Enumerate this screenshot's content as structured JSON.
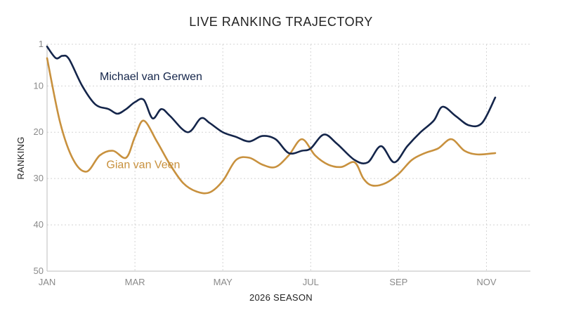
{
  "chart_data": {
    "type": "line",
    "title": "LIVE RANKING TRAJECTORY",
    "xlabel": "2026 SEASON",
    "ylabel": "RANKING",
    "y_inverted": true,
    "ylim": [
      1,
      50
    ],
    "yticks": [
      1,
      10,
      20,
      30,
      40,
      50
    ],
    "xlim": [
      0,
      11
    ],
    "xticks": [
      {
        "x": 0,
        "label": "JAN"
      },
      {
        "x": 2,
        "label": "MAR"
      },
      {
        "x": 4,
        "label": "MAY"
      },
      {
        "x": 6,
        "label": "JUL"
      },
      {
        "x": 8,
        "label": "SEP"
      },
      {
        "x": 10,
        "label": "NOV"
      }
    ],
    "grid": true,
    "series": [
      {
        "name": "Michael van Gerwen",
        "color": "#14254a",
        "label_at": {
          "x": 1.2,
          "y": 8
        },
        "points": [
          [
            0,
            1.5
          ],
          [
            0.2,
            4
          ],
          [
            0.35,
            3.5
          ],
          [
            0.5,
            4.2
          ],
          [
            0.8,
            10
          ],
          [
            1.1,
            14
          ],
          [
            1.4,
            15
          ],
          [
            1.6,
            16
          ],
          [
            1.8,
            15
          ],
          [
            2.0,
            13.5
          ],
          [
            2.2,
            13
          ],
          [
            2.4,
            17
          ],
          [
            2.6,
            15
          ],
          [
            2.8,
            16.5
          ],
          [
            3.2,
            20
          ],
          [
            3.5,
            17
          ],
          [
            3.7,
            18
          ],
          [
            4.0,
            20
          ],
          [
            4.3,
            21
          ],
          [
            4.6,
            22
          ],
          [
            4.9,
            20.8
          ],
          [
            5.2,
            21.5
          ],
          [
            5.5,
            24.5
          ],
          [
            5.8,
            24
          ],
          [
            6.0,
            23.5
          ],
          [
            6.3,
            20.5
          ],
          [
            6.6,
            22.5
          ],
          [
            7.0,
            26
          ],
          [
            7.3,
            26.5
          ],
          [
            7.6,
            23
          ],
          [
            7.9,
            26.5
          ],
          [
            8.2,
            23
          ],
          [
            8.5,
            20
          ],
          [
            8.8,
            17.5
          ],
          [
            9.0,
            14.5
          ],
          [
            9.3,
            16.5
          ],
          [
            9.6,
            18.5
          ],
          [
            9.9,
            18
          ],
          [
            10.2,
            12.5
          ]
        ]
      },
      {
        "name": "Gian van Veen",
        "color": "#c8913e",
        "label_at": {
          "x": 1.35,
          "y": 27
        },
        "points": [
          [
            0,
            4
          ],
          [
            0.3,
            18
          ],
          [
            0.6,
            26
          ],
          [
            0.9,
            28.5
          ],
          [
            1.2,
            25
          ],
          [
            1.5,
            24
          ],
          [
            1.8,
            25.5
          ],
          [
            2.0,
            21
          ],
          [
            2.2,
            17.5
          ],
          [
            2.5,
            22
          ],
          [
            2.8,
            27
          ],
          [
            3.1,
            31
          ],
          [
            3.4,
            32.8
          ],
          [
            3.7,
            33
          ],
          [
            4.0,
            30.5
          ],
          [
            4.3,
            26
          ],
          [
            4.6,
            25.5
          ],
          [
            4.9,
            27
          ],
          [
            5.2,
            27.5
          ],
          [
            5.5,
            25
          ],
          [
            5.8,
            21.5
          ],
          [
            6.1,
            25
          ],
          [
            6.4,
            27
          ],
          [
            6.7,
            27.5
          ],
          [
            7.0,
            26.5
          ],
          [
            7.2,
            30
          ],
          [
            7.4,
            31.5
          ],
          [
            7.7,
            31
          ],
          [
            8.0,
            29
          ],
          [
            8.3,
            26
          ],
          [
            8.6,
            24.5
          ],
          [
            8.9,
            23.5
          ],
          [
            9.2,
            21.5
          ],
          [
            9.5,
            24
          ],
          [
            9.8,
            24.8
          ],
          [
            10.2,
            24.5
          ]
        ]
      }
    ]
  }
}
